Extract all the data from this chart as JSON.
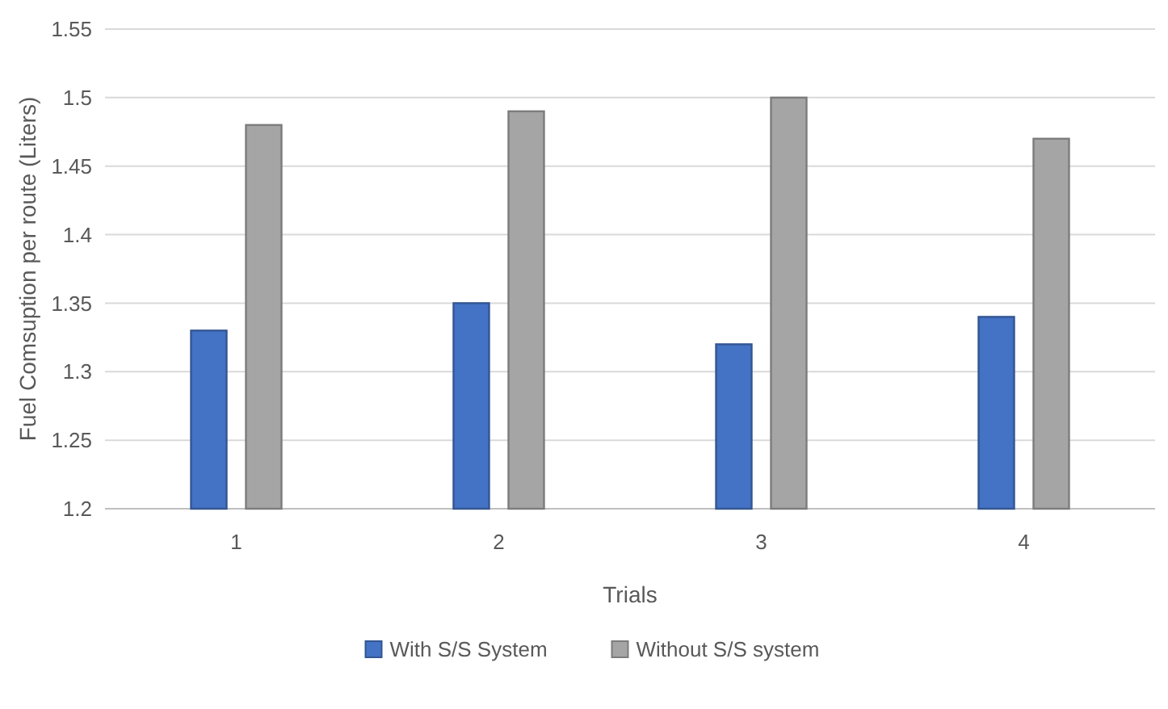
{
  "chart_data": {
    "type": "bar",
    "categories": [
      "1",
      "2",
      "3",
      "4"
    ],
    "series": [
      {
        "name": "With S/S System",
        "color": "#4472c4",
        "values": [
          1.33,
          1.35,
          1.32,
          1.34
        ]
      },
      {
        "name": "Without S/S system",
        "color": "#a5a5a5",
        "values": [
          1.48,
          1.49,
          1.5,
          1.47
        ]
      }
    ],
    "xlabel": "Trials",
    "ylabel": "Fuel Comsuption per route (Liters)",
    "ylim": [
      1.2,
      1.55
    ],
    "yticks": [
      1.2,
      1.25,
      1.3,
      1.35,
      1.4,
      1.45,
      1.5,
      1.55
    ],
    "grid": "y",
    "legend": "bottom"
  }
}
